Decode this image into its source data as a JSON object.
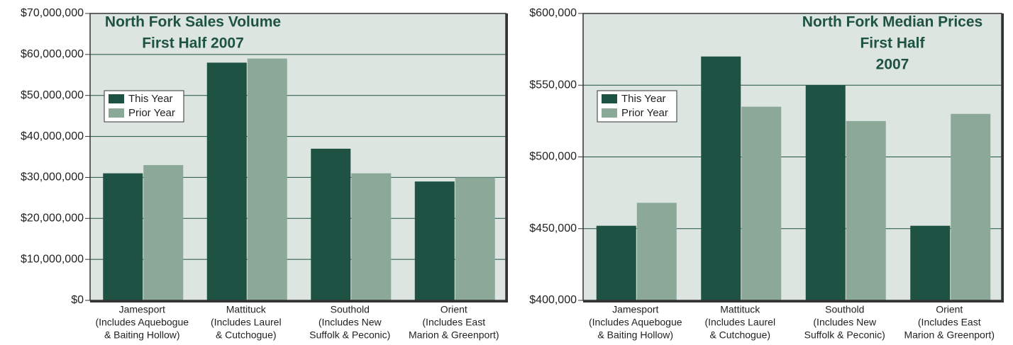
{
  "chart_data": [
    {
      "type": "bar",
      "title": [
        "North Fork Sales Volume",
        "First Half 2007"
      ],
      "categories": [
        [
          "Jamesport",
          "(Includes Aquebogue",
          "& Baiting Hollow)"
        ],
        [
          "Mattituck",
          "(Includes Laurel",
          "& Cutchogue)"
        ],
        [
          "Southold",
          "(Includes New",
          "Suffolk & Peconic)"
        ],
        [
          "Orient",
          "(Includes East",
          "Marion & Greenport)"
        ]
      ],
      "series": [
        {
          "name": "This Year",
          "color": "#1e5242",
          "values": [
            31000000,
            58000000,
            37000000,
            29000000
          ]
        },
        {
          "name": "Prior Year",
          "color": "#8ba898",
          "values": [
            33000000,
            59000000,
            31000000,
            30000000
          ]
        }
      ],
      "ylim": [
        0,
        70000000
      ],
      "yticks": [
        {
          "value": 0,
          "label": "$0"
        },
        {
          "value": 10000000,
          "label": "$10,000,000"
        },
        {
          "value": 20000000,
          "label": "$20,000,000"
        },
        {
          "value": 30000000,
          "label": "$30,000,000"
        },
        {
          "value": 40000000,
          "label": "$40,000,000"
        },
        {
          "value": 50000000,
          "label": "$50,000,000"
        },
        {
          "value": 60000000,
          "label": "$60,000,000"
        },
        {
          "value": 70000000,
          "label": "$70,000,000"
        }
      ],
      "grid": true,
      "legend": "left"
    },
    {
      "type": "bar",
      "title": [
        "North Fork Median Prices",
        "First Half",
        "2007"
      ],
      "categories": [
        [
          "Jamesport",
          "(Includes Aquebogue",
          "& Baiting Hollow)"
        ],
        [
          "Mattituck",
          "(Includes Laurel",
          "& Cutchogue)"
        ],
        [
          "Southold",
          "(Includes New",
          "Suffolk & Peconic)"
        ],
        [
          "Orient",
          "(Includes East",
          "Marion & Greenport)"
        ]
      ],
      "series": [
        {
          "name": "This Year",
          "color": "#1e5242",
          "values": [
            452000,
            570000,
            550000,
            452000
          ]
        },
        {
          "name": "Prior Year",
          "color": "#8ba898",
          "values": [
            468000,
            535000,
            525000,
            530000
          ]
        }
      ],
      "ylim": [
        400000,
        600000
      ],
      "yticks": [
        {
          "value": 400000,
          "label": "$400,000"
        },
        {
          "value": 450000,
          "label": "$450,000"
        },
        {
          "value": 500000,
          "label": "$500,000"
        },
        {
          "value": 550000,
          "label": "$550,000"
        },
        {
          "value": 600000,
          "label": "$600,000"
        }
      ],
      "grid": true,
      "legend": "left"
    }
  ]
}
